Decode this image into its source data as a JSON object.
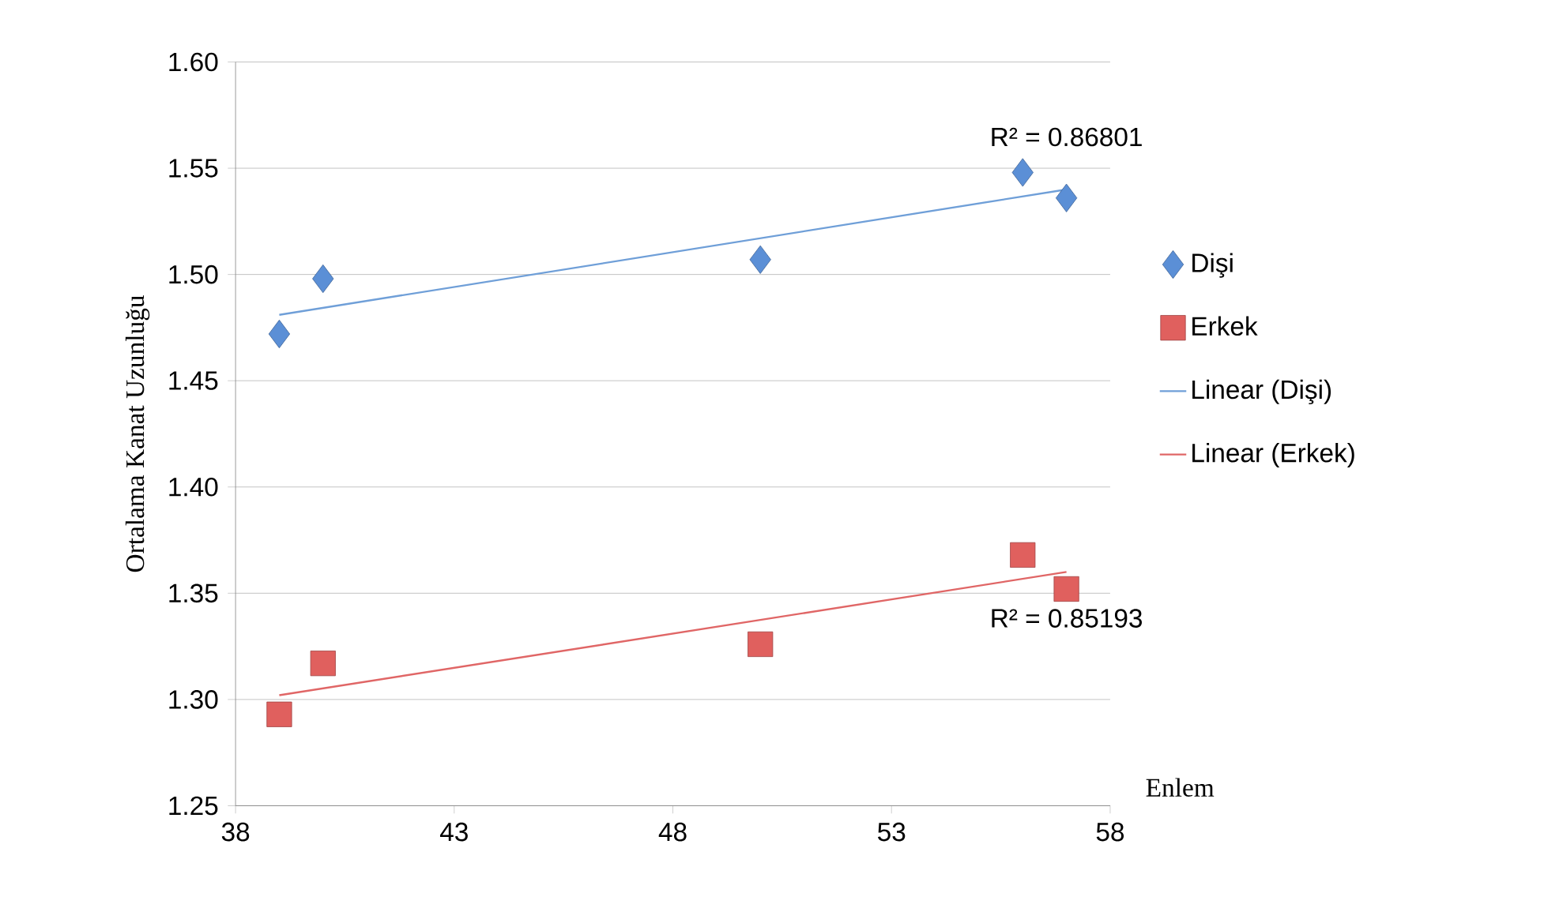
{
  "chart_data": {
    "type": "scatter",
    "xlabel": "Enlem",
    "ylabel": "Ortalama Kanat Uzunluğu",
    "series": [
      {
        "name": "Dişi",
        "color": "#5b8fd6",
        "marker": "diamond",
        "x": [
          39,
          40,
          50,
          56,
          57
        ],
        "values": [
          1.472,
          1.498,
          1.507,
          1.548,
          1.536
        ]
      },
      {
        "name": "Erkek",
        "color": "#e0605e",
        "marker": "square",
        "x": [
          39,
          40,
          50,
          56,
          57
        ],
        "values": [
          1.293,
          1.317,
          1.326,
          1.368,
          1.352
        ]
      },
      {
        "name": "Linear (Dişi)",
        "type": "line",
        "color": "#6f9fd8",
        "marker": "none",
        "x": [
          39,
          57
        ],
        "values": [
          1.481,
          1.54
        ]
      },
      {
        "name": "Linear (Erkek)",
        "type": "line",
        "color": "#e06666",
        "marker": "none",
        "x": [
          39,
          57
        ],
        "values": [
          1.302,
          1.36
        ]
      }
    ],
    "annotations": [
      "R² = 0.86801",
      "R² = 0.85193"
    ],
    "xlim": [
      38,
      58
    ],
    "xticks": [
      38,
      43,
      48,
      53,
      58
    ],
    "ylim": [
      1.25,
      1.6
    ],
    "yticks": [
      {
        "value": 1.25,
        "label": "1.25"
      },
      {
        "value": 1.3,
        "label": "1.30"
      },
      {
        "value": 1.35,
        "label": "1.35"
      },
      {
        "value": 1.4,
        "label": "1.40"
      },
      {
        "value": 1.45,
        "label": "1.45"
      },
      {
        "value": 1.5,
        "label": "1.50"
      },
      {
        "value": 1.55,
        "label": "1.55"
      },
      {
        "value": 1.6,
        "label": "1.60"
      }
    ],
    "grid": "y",
    "legend": "right"
  }
}
